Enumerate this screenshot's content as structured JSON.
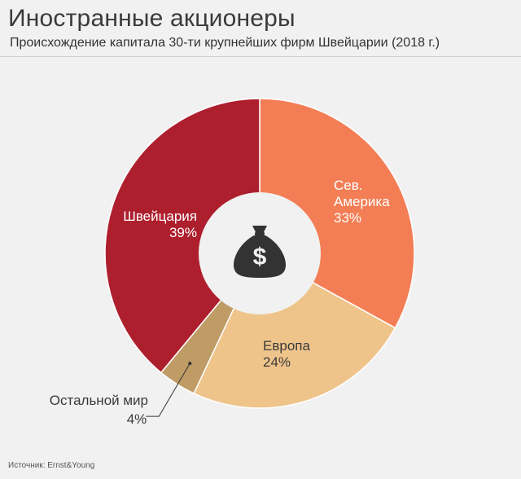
{
  "header": {
    "title": "Иностранные акционеры",
    "subtitle": "Происхождение капитала 30-ти крупнейших фирм Швейцарии (2018 г.)"
  },
  "footer": {
    "source": "Источник: Ernst&Young"
  },
  "center_icon": "money-bag-icon",
  "chart_data": {
    "type": "pie",
    "donut": true,
    "slices": [
      {
        "label": [
          "Сев.",
          "Америка"
        ],
        "value": 33,
        "value_label": "33%",
        "color": "#f37e55",
        "text_color": "#ffffff"
      },
      {
        "label": [
          "Европа"
        ],
        "value": 24,
        "value_label": "24%",
        "color": "#efc48b",
        "text_color": "#3a3a3a"
      },
      {
        "label": [
          "Остальной мир"
        ],
        "value": 4,
        "value_label": "4%",
        "color": "#bf9b66",
        "text_color": "#3a3a3a"
      },
      {
        "label": [
          "Швейцария"
        ],
        "value": 39,
        "value_label": "39%",
        "color": "#ae1f2e",
        "text_color": "#ffffff"
      }
    ]
  }
}
